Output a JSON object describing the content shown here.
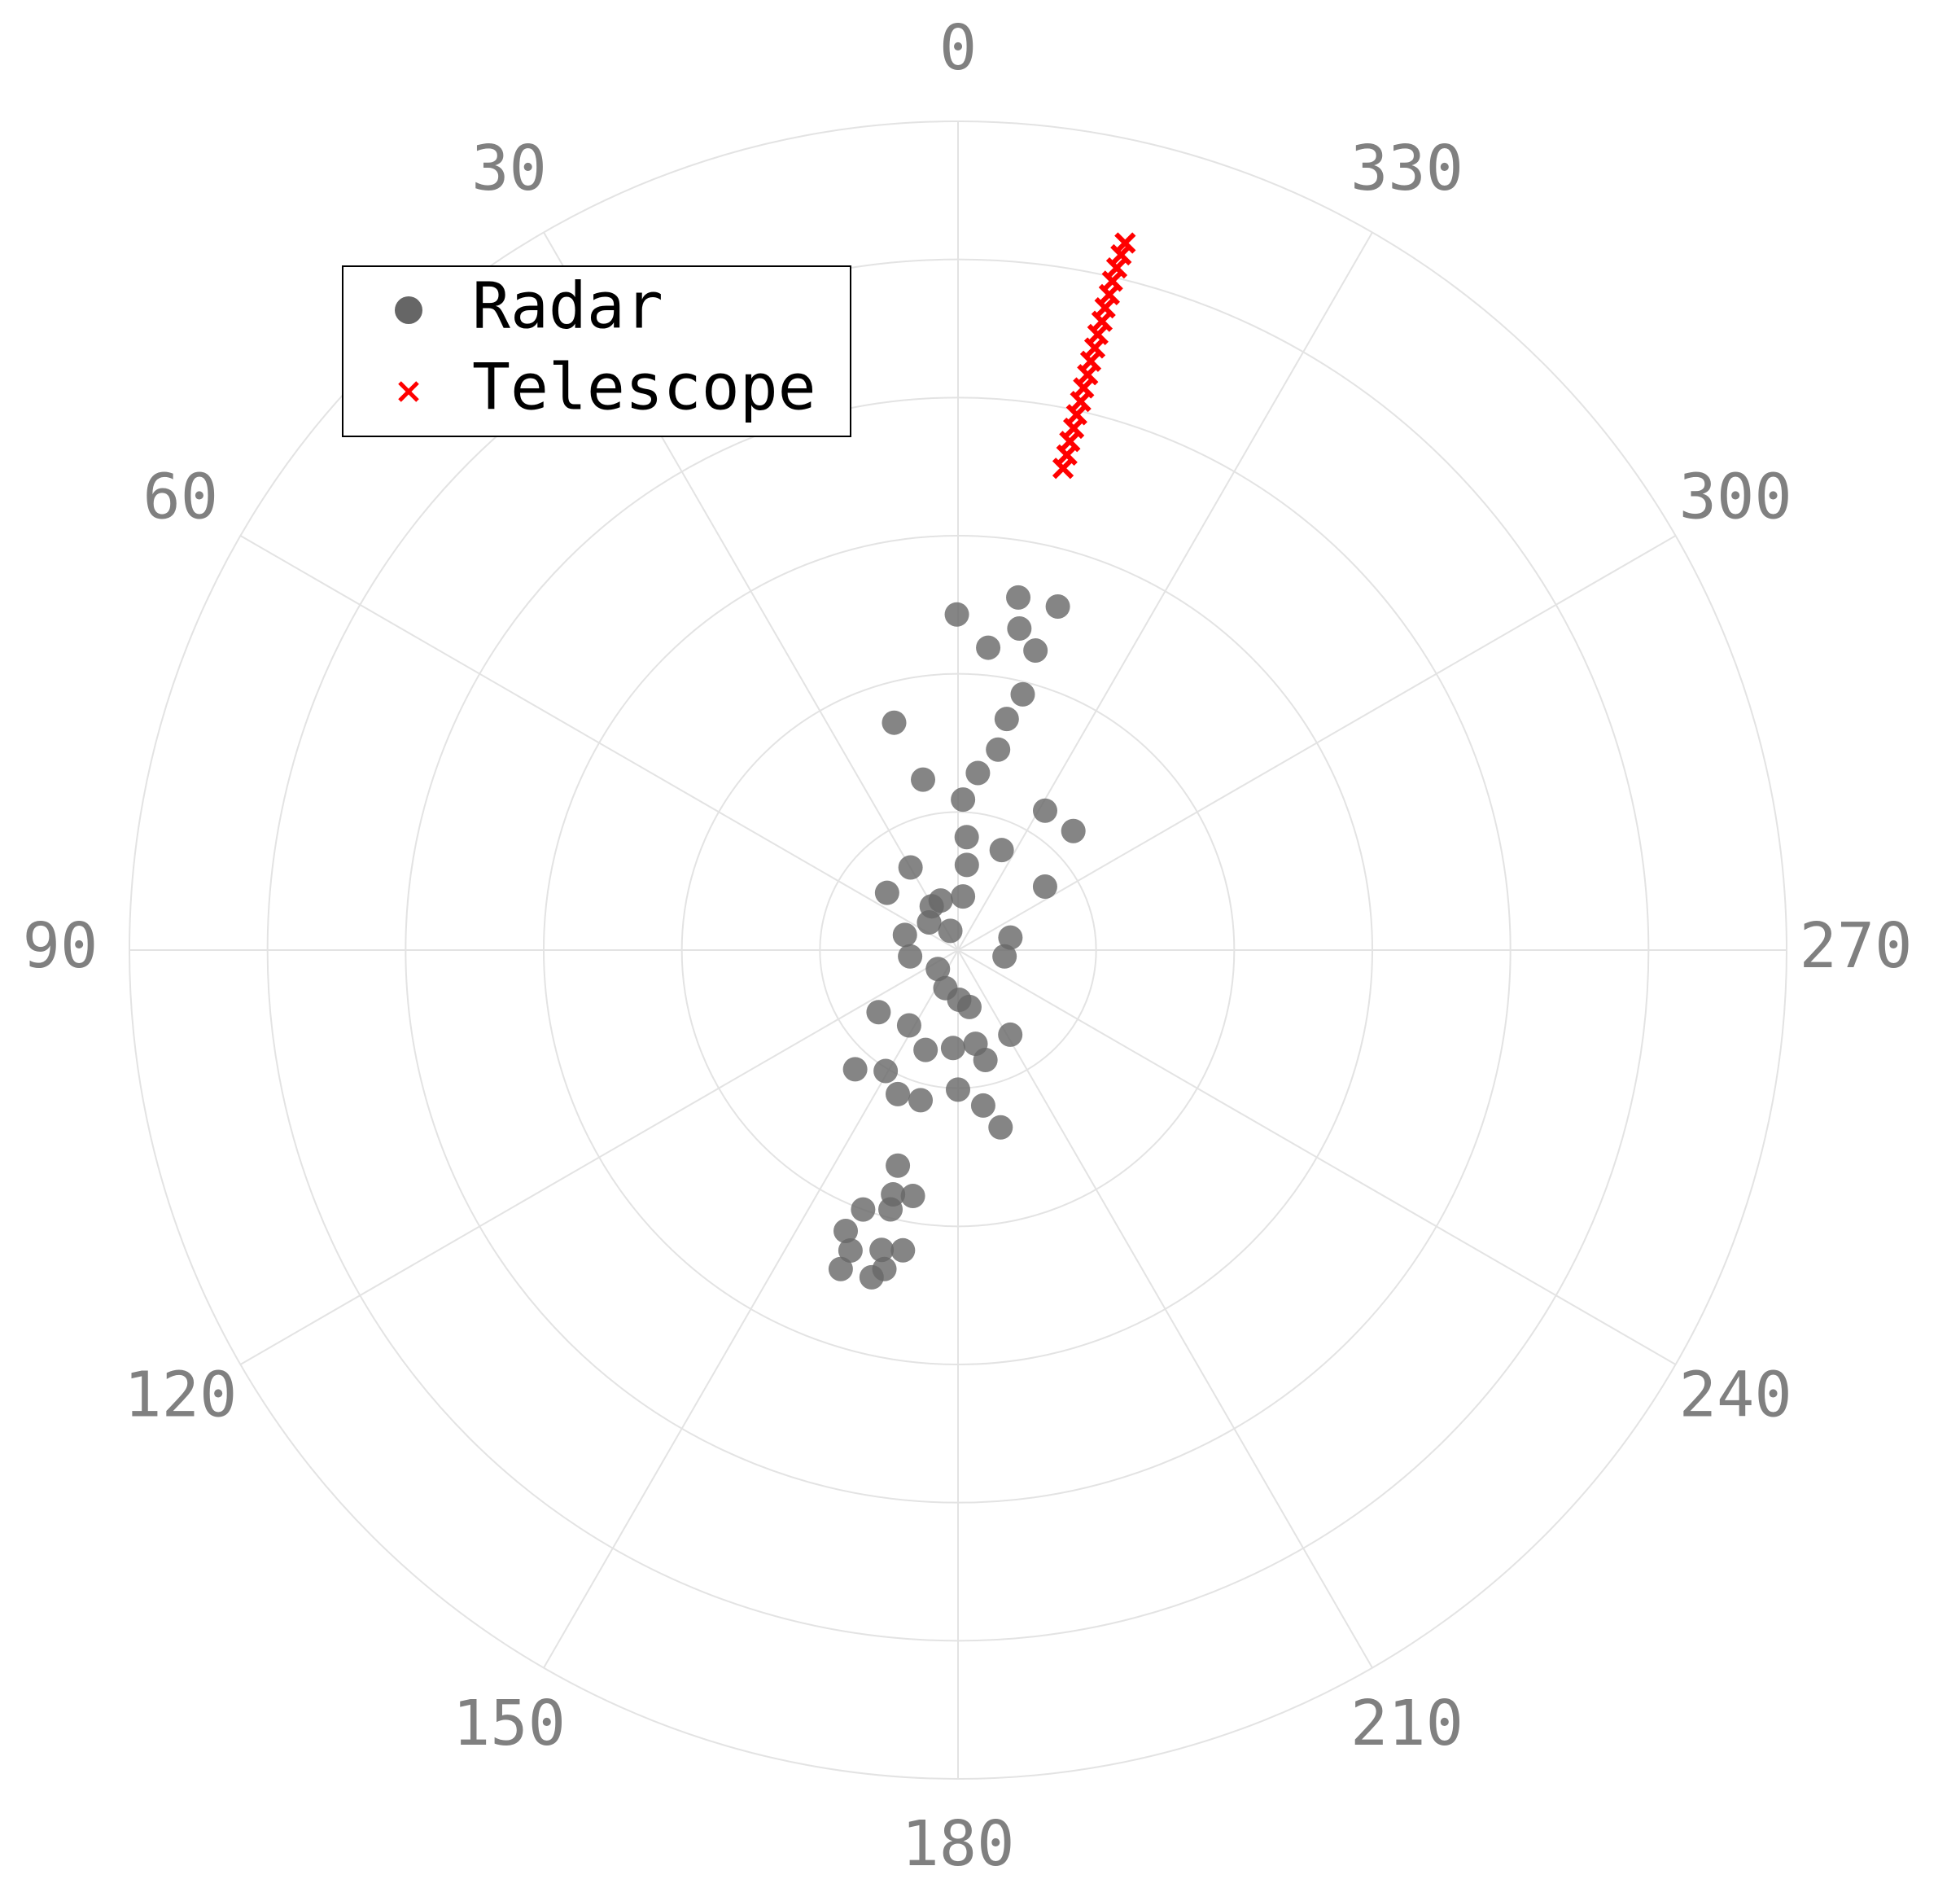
{
  "chart_data": {
    "type": "polar_scatter",
    "theta_zero": "top",
    "theta_direction": "counterclockwise",
    "thetaticks": [
      0,
      30,
      60,
      90,
      120,
      150,
      180,
      210,
      240,
      270,
      300,
      330
    ],
    "rlim": [
      0,
      6
    ],
    "rticks": [
      1,
      2,
      3,
      4,
      5,
      6
    ],
    "grid": true,
    "legend": "upper left",
    "series": [
      {
        "name": "Radar",
        "color": "#666666",
        "marker": "o",
        "theta": [
          350.3,
          343.8,
          0.2,
          349.2,
          345.5,
          354.3,
          345.8,
          348.1,
          348.7,
          353.6,
          15.7,
          11.6,
          358.1,
          328,
          315.9,
          355.6,
          336.4,
          354.1,
          29.9,
          306.1,
          51.1,
          19.3,
          354.7,
          74.1,
          283.4,
          46.3,
          21.8,
          97.5,
          262.3,
          133.2,
          128,
          147,
          181.4,
          190.6,
          211.7,
          139.2,
          149.1,
          162,
          177.1,
          157.3,
          166,
          180,
          189.2,
          193.5,
          194,
          164.4,
          165.1,
          169.6,
          159.9,
          165.4,
          158.2,
          160.3,
          165.7,
          169.6,
          159.8,
          165.2,
          167,
          161.6,
          31,
          191.3
        ],
        "r": [
          2.59,
          2.59,
          2.43,
          2.37,
          2.24,
          2.2,
          1.91,
          1.71,
          1.48,
          1.29,
          1.71,
          1.26,
          1.09,
          1.19,
          1.2,
          0.82,
          0.79,
          0.62,
          0.69,
          0.78,
          0.66,
          0.38,
          0.39,
          0.4,
          0.39,
          0.29,
          0.15,
          0.35,
          0.34,
          0.2,
          0.73,
          0.65,
          0.36,
          0.69,
          0.72,
          1.14,
          1.02,
          0.76,
          0.71,
          1.13,
          1.12,
          1.01,
          1.14,
          1.32,
          0.82,
          1.62,
          1.83,
          1.81,
          2.0,
          1.94,
          2.19,
          2.31,
          2.24,
          2.21,
          2.46,
          2.45,
          2.37,
          0.29,
          0.37,
          0.42
        ]
      },
      {
        "name": "Telescope",
        "color": "#ff0000",
        "marker": "x",
        "theta": [
          347.7,
          347.6,
          347.6,
          347.5,
          347.5,
          347.4,
          347.4,
          347.3,
          347.3,
          347.2,
          347.2,
          347.1,
          347.1,
          347.0,
          347.0,
          346.9,
          346.8,
          346.7
        ],
        "r": [
          3.57,
          3.67,
          3.77,
          3.87,
          3.97,
          4.07,
          4.17,
          4.27,
          4.37,
          4.47,
          4.57,
          4.67,
          4.77,
          4.87,
          4.97,
          5.07,
          5.17,
          5.26
        ]
      }
    ]
  }
}
